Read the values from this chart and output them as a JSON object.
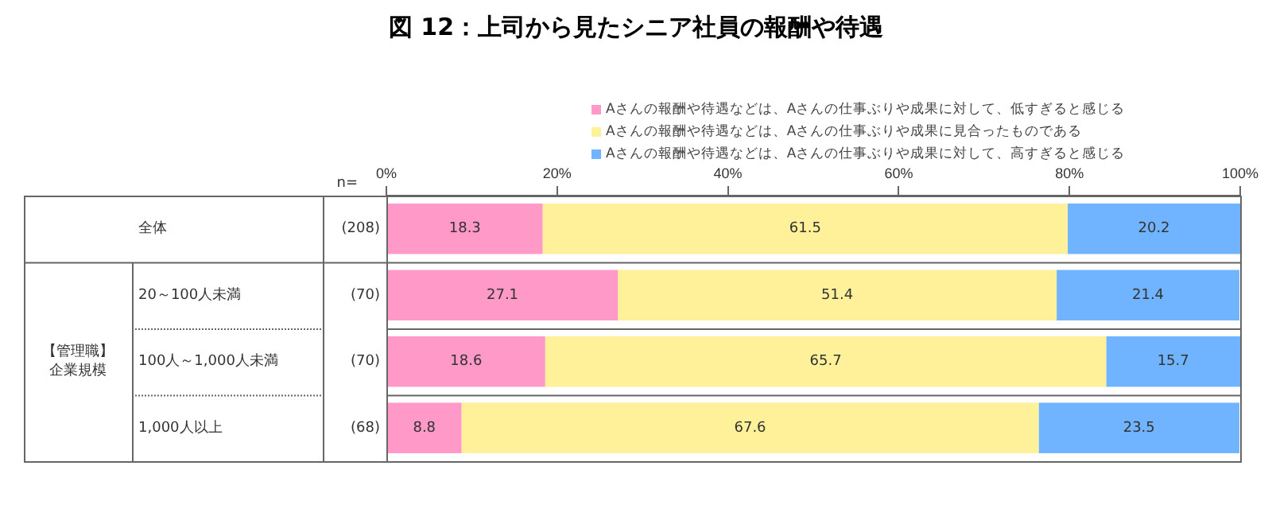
{
  "chart_data": {
    "type": "bar",
    "orientation": "horizontal",
    "stacked": true,
    "title": "図 12：上司から見たシニア社員の報酬や待遇",
    "categories": [
      "全体",
      "20～100人未満",
      "100人～1,000人未満",
      "1,000人以上"
    ],
    "series": [
      {
        "name": "Aさんの報酬や待遇などは、Aさんの仕事ぶりや成果に対して、低すぎると感じる",
        "color": "#ff99c8",
        "values": [
          18.3,
          27.1,
          18.6,
          8.8
        ]
      },
      {
        "name": "Aさんの報酬や待遇などは、Aさんの仕事ぶりや成果に見合ったものである",
        "color": "#fff09a",
        "values": [
          61.5,
          51.4,
          65.7,
          67.6
        ]
      },
      {
        "name": "Aさんの報酬や待遇などは、Aさんの仕事ぶりや成果に対して、高すぎると感じる",
        "color": "#70b4ff",
        "values": [
          20.2,
          21.4,
          15.7,
          23.5
        ]
      }
    ],
    "xlim": [
      0,
      100
    ],
    "xticks": [
      {
        "value": 0,
        "label": "0%"
      },
      {
        "value": 20,
        "label": "20%"
      },
      {
        "value": 40,
        "label": "40%"
      },
      {
        "value": 60,
        "label": "60%"
      },
      {
        "value": 80,
        "label": "80%"
      },
      {
        "value": 100,
        "label": "100%"
      }
    ],
    "grid": false,
    "legend": "top right",
    "data_labels": true,
    "annotations": [
      "n=",
      "【管理職】",
      "企業規模",
      "(208)",
      "(70)",
      "(70)",
      "(68)"
    ]
  }
}
